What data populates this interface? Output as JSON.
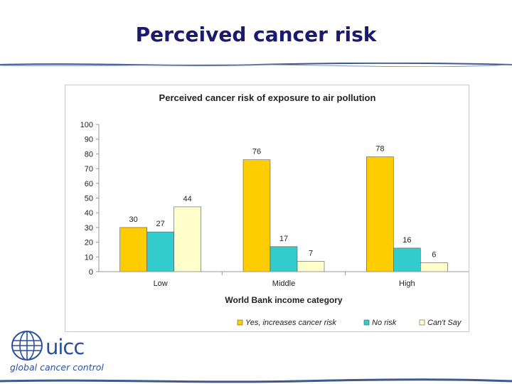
{
  "slide": {
    "title": "Perceived cancer risk"
  },
  "logo": {
    "word": "uicc",
    "tagline": "global cancer control"
  },
  "colors": {
    "title": "#1a1a6e",
    "rule": "#3d5a8a",
    "logo": "#2a4f9c"
  },
  "chart_data": {
    "type": "bar",
    "title": "Perceived cancer risk of exposure to air pollution",
    "xlabel": "World Bank income category",
    "ylabel": "",
    "ylim": [
      0,
      100
    ],
    "yticks": [
      "0",
      "10",
      "20",
      "30",
      "40",
      "50",
      "60",
      "70",
      "80",
      "90",
      "100"
    ],
    "categories": [
      "Low",
      "Middle",
      "High"
    ],
    "series": [
      {
        "name": "Yes, increases cancer risk",
        "color": "#ffcc00",
        "values": [
          30,
          76,
          78
        ]
      },
      {
        "name": "No risk",
        "color": "#33cccc",
        "values": [
          27,
          17,
          16
        ]
      },
      {
        "name": "Can't Say",
        "color": "#ffffcc",
        "values": [
          44,
          7,
          6
        ]
      }
    ],
    "legend_position": "bottom-right",
    "grid": false
  }
}
